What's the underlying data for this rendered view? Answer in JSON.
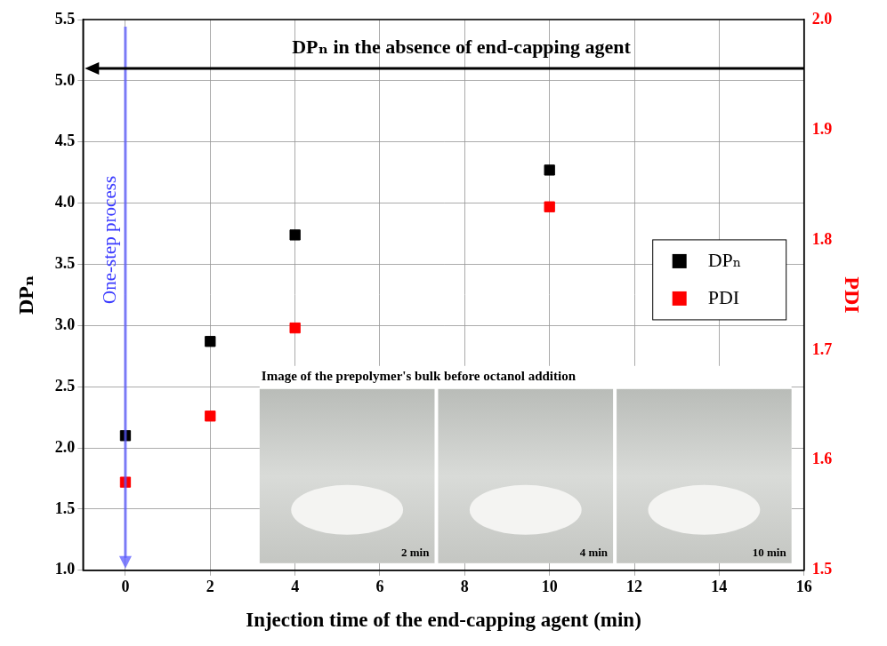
{
  "chart_data": {
    "type": "scatter",
    "x": [
      0,
      2,
      4,
      10
    ],
    "series": [
      {
        "name": "DPₙ",
        "color": "#000000",
        "marker": "square",
        "values": [
          2.1,
          2.87,
          3.74,
          4.27
        ]
      },
      {
        "name": "PDI",
        "color": "#ff0000",
        "marker": "square",
        "axis": "y2",
        "values": [
          1.58,
          1.64,
          1.72,
          1.83
        ]
      }
    ],
    "x_label": "Injection time of the end-capping agent (min)",
    "y_label": "DPₙ",
    "y2_label": "PDI",
    "xlim": [
      -1,
      16
    ],
    "xticks": [
      0,
      2,
      4,
      6,
      8,
      10,
      12,
      14,
      16
    ],
    "ylim": [
      1,
      5.5
    ],
    "yticks": [
      {
        "value": 1,
        "label": "1.0"
      },
      1.5,
      {
        "value": 2,
        "label": "2.0"
      },
      2.5,
      {
        "value": 3,
        "label": "3.0"
      },
      3.5,
      {
        "value": 4,
        "label": "4.0"
      },
      4.5,
      {
        "value": 5,
        "label": "5.0"
      },
      5.5
    ],
    "y2lim": [
      1.5,
      2.0
    ],
    "y2ticks": [
      1.5,
      1.6,
      1.7,
      1.8,
      1.9,
      {
        "value": 2,
        "label": "2.0"
      }
    ],
    "grid": true,
    "legend": "right",
    "annotations": [
      {
        "text": "DPₙ in the absence of end-capping agent",
        "y": 5.1
      },
      {
        "text": "One-step process",
        "x": 0
      },
      {
        "text": "Image of the prepolymer's bulk before octanol addition",
        "panels": [
          "2 min",
          "4 min",
          "10 min"
        ]
      }
    ]
  }
}
